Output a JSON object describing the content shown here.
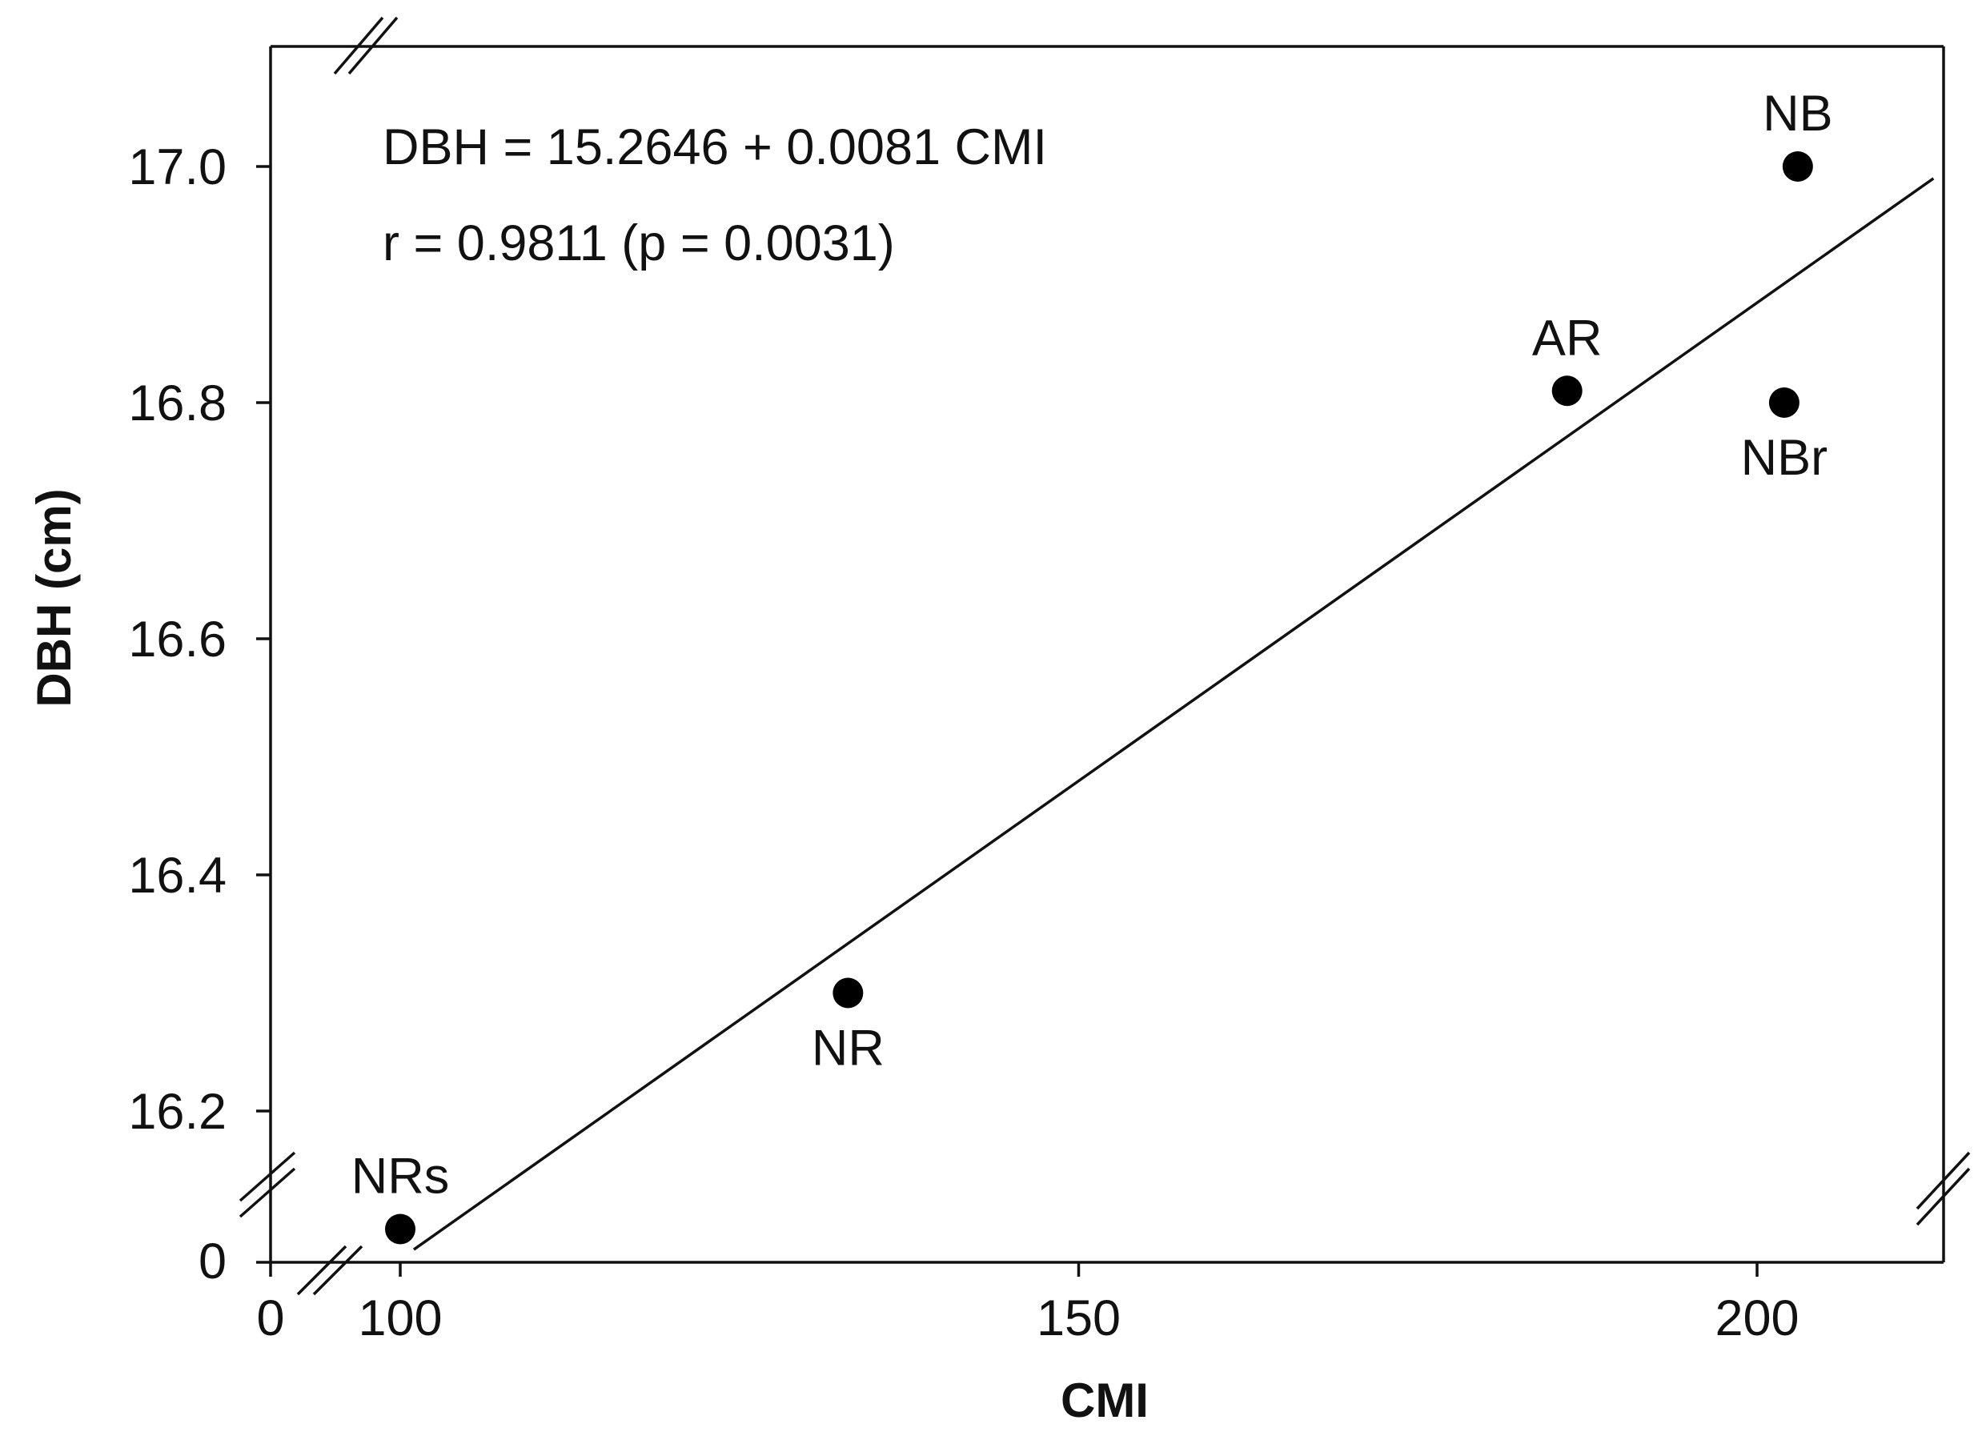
{
  "chart_data": {
    "type": "scatter",
    "xlabel": "CMI",
    "ylabel": "DBH (cm)",
    "xlim": [
      90,
      213
    ],
    "ylim": [
      16.07,
      17.1
    ],
    "x_axis_break": true,
    "y_axis_break": true,
    "x_ticks": [
      100,
      150,
      200
    ],
    "x_tick_labels": [
      "100",
      "150",
      "200"
    ],
    "x_origin_label": "0",
    "y_ticks": [
      16.2,
      16.4,
      16.6,
      16.8,
      17.0
    ],
    "y_tick_labels": [
      "16.2",
      "16.4",
      "16.6",
      "16.8",
      "17.0"
    ],
    "y_origin_label": "0",
    "grid": false,
    "points": [
      {
        "label": "NRs",
        "x": 100,
        "y": 16.1
      },
      {
        "label": "NR",
        "x": 133,
        "y": 16.3
      },
      {
        "label": "AR",
        "x": 186,
        "y": 16.81
      },
      {
        "label": "NBr",
        "x": 202,
        "y": 16.8
      },
      {
        "label": "NB",
        "x": 203,
        "y": 17.0
      }
    ],
    "regression": {
      "intercept": 15.2646,
      "slope": 0.0081,
      "x_range": [
        101,
        213
      ],
      "equation": "DBH = 15.2646 + 0.0081 CMI",
      "stat": "r = 0.9811 (p = 0.0031)"
    }
  }
}
